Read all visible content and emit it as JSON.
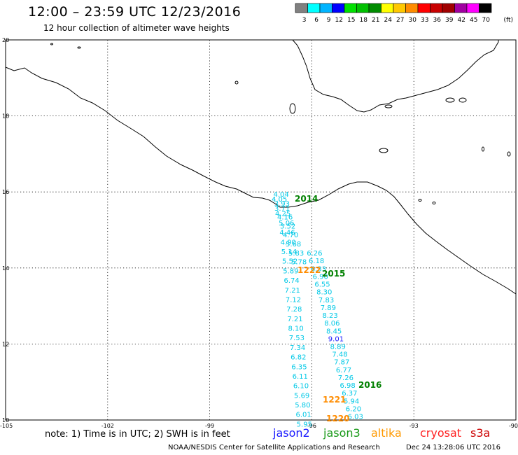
{
  "header": {
    "title": "12:00 – 23:59 UTC 12/23/2016",
    "subtitle": "12 hour collection of altimeter wave heights"
  },
  "legend": {
    "unit": "(ft)",
    "bins": [
      {
        "label": "3",
        "color": "#808080"
      },
      {
        "label": "6",
        "color": "#00ffff"
      },
      {
        "label": "9",
        "color": "#00b4ff"
      },
      {
        "label": "12",
        "color": "#0000ff"
      },
      {
        "label": "15",
        "color": "#00e000"
      },
      {
        "label": "18",
        "color": "#00c000"
      },
      {
        "label": "21",
        "color": "#008c00"
      },
      {
        "label": "24",
        "color": "#ffff00"
      },
      {
        "label": "27",
        "color": "#ffc800"
      },
      {
        "label": "30",
        "color": "#ff8c00"
      },
      {
        "label": "33",
        "color": "#ff0000"
      },
      {
        "label": "36",
        "color": "#c80000"
      },
      {
        "label": "39",
        "color": "#a00000"
      },
      {
        "label": "42",
        "color": "#a000a0"
      },
      {
        "label": "45",
        "color": "#ff00ff"
      },
      {
        "label": "70",
        "color": "#000000"
      }
    ]
  },
  "axes": {
    "lon_ticks": [
      "-105",
      "-102",
      "-99",
      "-96",
      "-93",
      "-90"
    ],
    "lat_ticks": [
      "20",
      "18",
      "16",
      "14",
      "12",
      "10"
    ]
  },
  "tracks": {
    "jason2_color": "#1a1aff",
    "jason3_color": "#1a9a1a",
    "altika_color": "#ff9900",
    "cryosat_color": "#ff2020",
    "s3a_color": "#cc0000",
    "swh_color": "#00c8e6",
    "altika_label_color": "#ff8c00",
    "jason3_label_color": "#008000",
    "track_west": {
      "lon_start": -96.8,
      "lon_end": -96.2,
      "lat_start": 15.95,
      "lat_end": 9.9,
      "values": [
        "4.04",
        "3.93",
        "4.25",
        "5.06",
        "4.46",
        "4.90",
        "5.14",
        "5.52",
        "5.89",
        "6.74",
        "7.21",
        "7.12",
        "7.28",
        "7.21",
        "8.10",
        "7.53",
        "7.34",
        "6.82",
        "6.35",
        "6.11",
        "6.10",
        "5.69",
        "5.80",
        "6.01",
        "5.95"
      ]
    },
    "track_west_b": {
      "values": [
        "4.05",
        "3.71",
        "4.16",
        "3.52",
        "4.70",
        "5.68",
        "5.83",
        "5.78"
      ]
    },
    "track_east": {
      "lon_start": -95.9,
      "lon_end": -94.7,
      "lat_start": 14.4,
      "lat_end": 10.1,
      "values": [
        "6.26",
        "6.18",
        "6.33",
        "6.90",
        "6.55",
        "8.30",
        "7.83",
        "7.89",
        "8.23",
        "8.06",
        "8.45",
        "9.01",
        "8.89",
        "7.48",
        "7.87",
        "6.77",
        "7.26",
        "6.98",
        "6.37",
        "5.94",
        "6.20",
        "6.03"
      ]
    },
    "time_labels": [
      {
        "text": "2014",
        "color_key": "jason3"
      },
      {
        "text": "1222",
        "color_key": "altika"
      },
      {
        "text": "2015",
        "color_key": "jason3"
      },
      {
        "text": "2016",
        "color_key": "jason3"
      },
      {
        "text": "1221",
        "color_key": "altika"
      },
      {
        "text": "1220",
        "color_key": "altika"
      }
    ]
  },
  "footer": {
    "note": "note:  1) Time is in UTC;  2) SWH is in feet",
    "satellites": [
      {
        "name": "jason2",
        "color": "#1a1aff"
      },
      {
        "name": "jason3",
        "color": "#1a9a1a"
      },
      {
        "name": "altika",
        "color": "#ff9900"
      },
      {
        "name": "cryosat",
        "color": "#ff2020"
      },
      {
        "name": "s3a",
        "color": "#cc0000"
      }
    ],
    "credit": "NOAA/NESDIS Center for Satellite Applications and Research",
    "date": "Dec 24 13:28:06 UTC 2016"
  }
}
